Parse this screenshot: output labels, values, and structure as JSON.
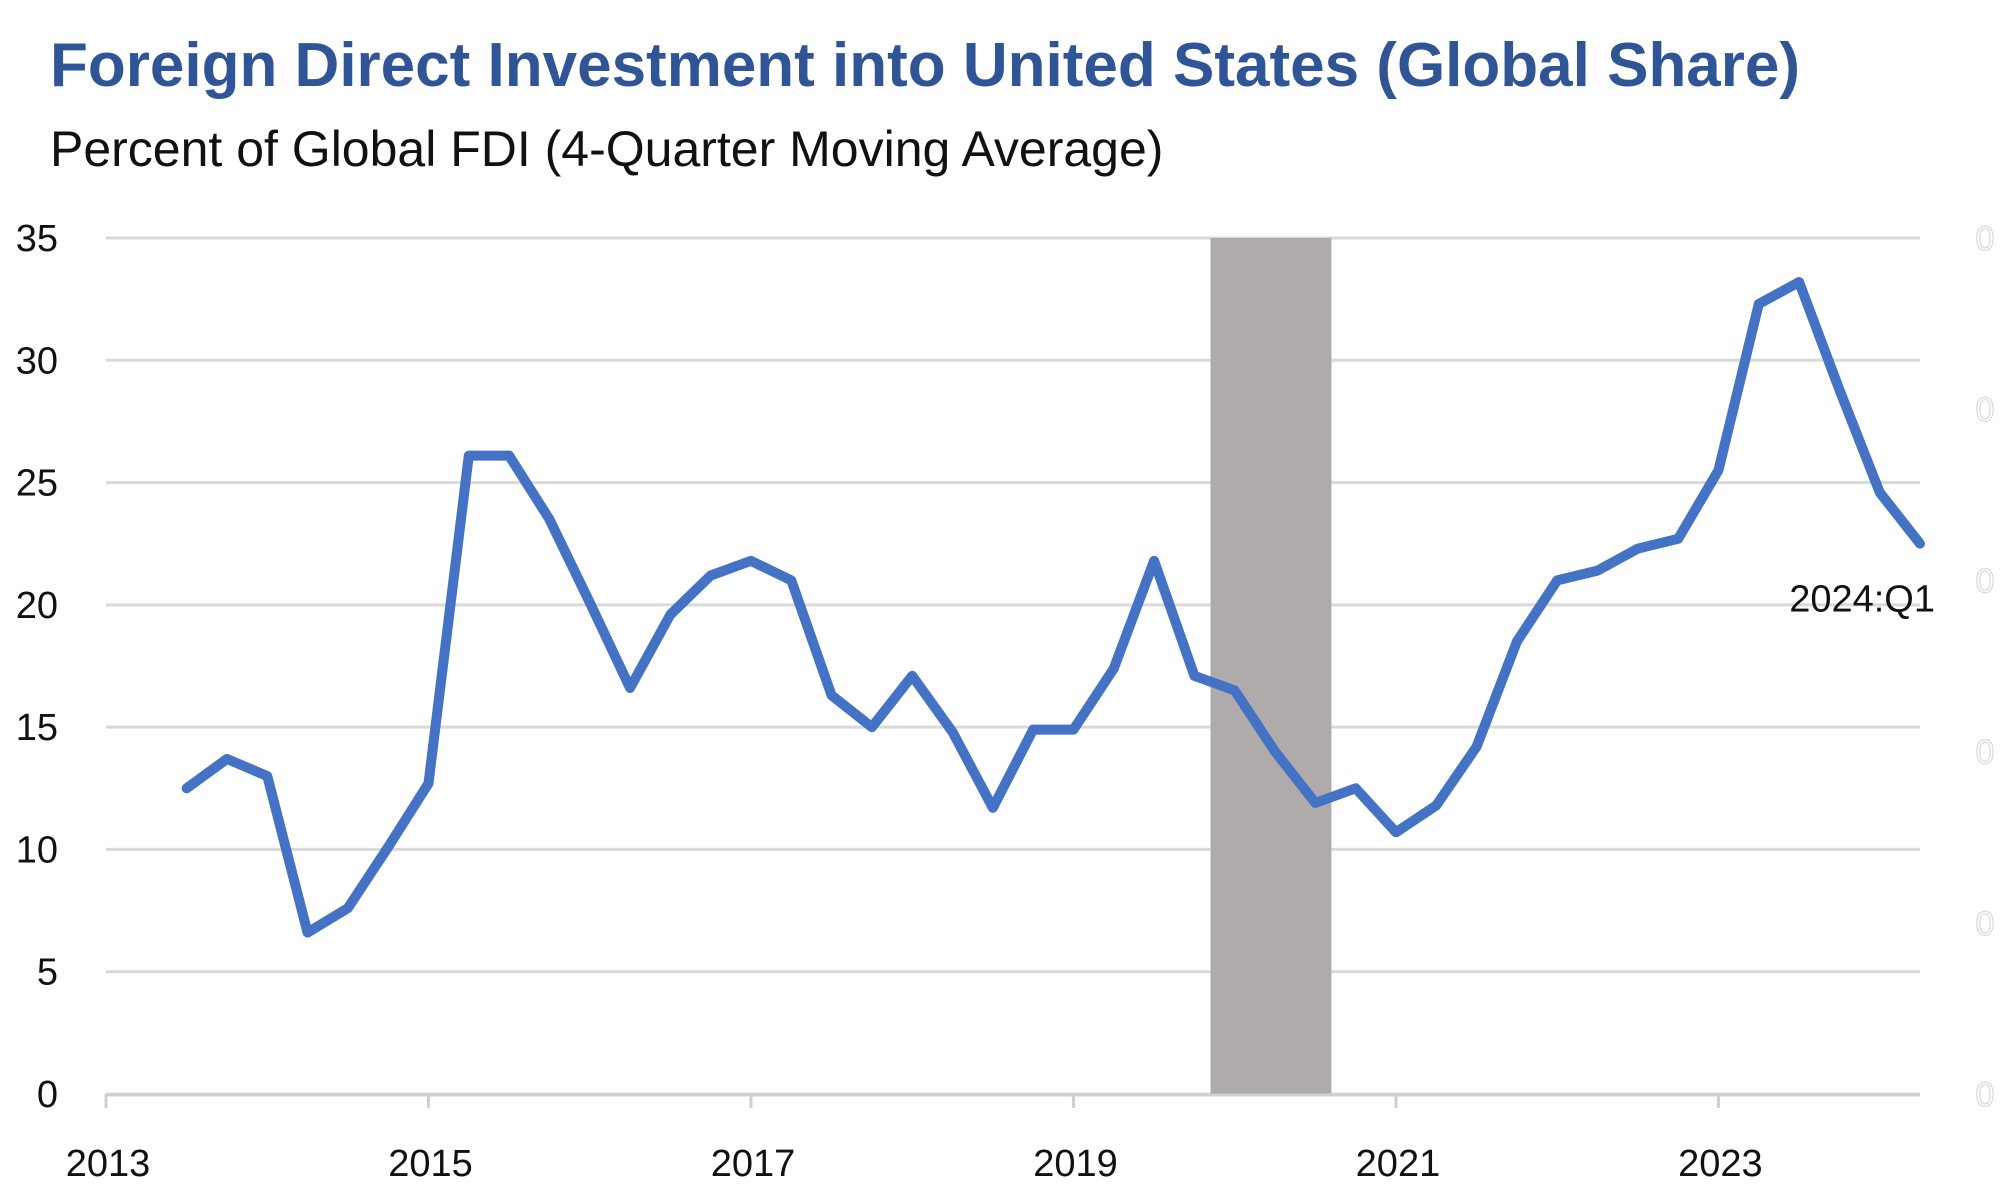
{
  "title": "Foreign Direct Investment into United States (Global Share)",
  "subtitle": "Percent of Global FDI (4-Quarter Moving Average)",
  "chart_data": {
    "type": "line",
    "title": "Foreign Direct Investment into United States (Global Share)",
    "subtitle": "Percent of Global FDI (4-Quarter Moving Average)",
    "xlabel": "",
    "ylabel": "",
    "x_ticks": [
      "2013",
      "2015",
      "2017",
      "2019",
      "2021",
      "2023"
    ],
    "y_ticks": [
      "0",
      "5",
      "10",
      "15",
      "20",
      "25",
      "30",
      "35"
    ],
    "right_axis_ticks": [
      "0",
      "0",
      "0",
      "0",
      "0",
      "0"
    ],
    "ylim": [
      0,
      35
    ],
    "xlim": [
      2013,
      2024.25
    ],
    "grid": true,
    "line_color": "#4472C4",
    "shade_color": "#AFABAB",
    "shaded_period": {
      "start": "2019:Q4",
      "end": "2020:Q2"
    },
    "annotation": "2024:Q1",
    "x": [
      "2013:Q2",
      "2013:Q3",
      "2013:Q4",
      "2014:Q1",
      "2014:Q2",
      "2014:Q3",
      "2014:Q4",
      "2015:Q1",
      "2015:Q2",
      "2015:Q3",
      "2015:Q4",
      "2016:Q1",
      "2016:Q2",
      "2016:Q3",
      "2016:Q4",
      "2017:Q1",
      "2017:Q2",
      "2017:Q3",
      "2017:Q4",
      "2018:Q1",
      "2018:Q2",
      "2018:Q3",
      "2018:Q4",
      "2019:Q1",
      "2019:Q2",
      "2019:Q3",
      "2019:Q4",
      "2020:Q1",
      "2020:Q2",
      "2020:Q3",
      "2020:Q4",
      "2021:Q1",
      "2021:Q2",
      "2021:Q3",
      "2021:Q4",
      "2022:Q1",
      "2022:Q2",
      "2022:Q3",
      "2022:Q4",
      "2023:Q1",
      "2023:Q2",
      "2023:Q3",
      "2023:Q4",
      "2024:Q1"
    ],
    "values": [
      12.5,
      13.7,
      13.0,
      6.6,
      7.6,
      10.1,
      12.7,
      26.1,
      26.1,
      23.5,
      20.1,
      16.6,
      19.6,
      21.2,
      21.8,
      21.0,
      16.3,
      15.0,
      17.1,
      14.8,
      11.7,
      14.9,
      14.9,
      17.4,
      21.8,
      17.1,
      16.5,
      14.0,
      11.9,
      12.5,
      10.7,
      11.8,
      14.2,
      18.5,
      21.0,
      21.4,
      22.3,
      22.7,
      25.5,
      32.3,
      33.2,
      28.8,
      24.6,
      22.5
    ]
  }
}
